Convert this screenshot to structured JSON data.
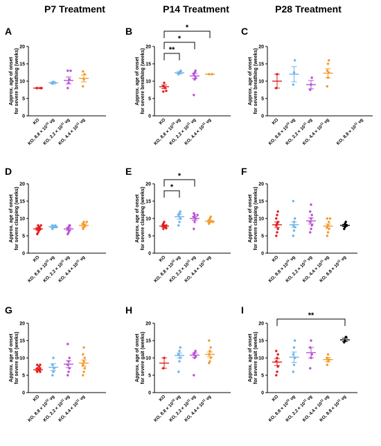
{
  "column_titles": [
    "P7 Treatment",
    "P14 Treatment",
    "P28 Treatment"
  ],
  "colors": {
    "KO": "#e41a1c",
    "KO, 8.8 × 10^10 vg": "#6cb4e8",
    "KO, 2.2 × 10^11 vg": "#b84fd6",
    "KO, 4.4 × 10^11 vg": "#f39a2b",
    "KO, 8.8 × 10^11 vg": "#000000"
  },
  "chart_data": [
    {
      "panel": "A",
      "type": "scatter",
      "ylabel": [
        "Approx. age of onset",
        "for severe breathing (weeks)"
      ],
      "ylim": [
        0,
        20
      ],
      "yticks": [
        0,
        5,
        10,
        15,
        20
      ],
      "groups": [
        {
          "label": "KO",
          "mean": 8.0,
          "sem": 0,
          "points": [
            8,
            8,
            8,
            8
          ]
        },
        {
          "label": "KO, 8.8 × 10^10 vg",
          "mean": 9.5,
          "sem": 0.3,
          "points": [
            9.3,
            9.8
          ]
        },
        {
          "label": "KO, 2.2 × 10^11 vg",
          "mean": 10.2,
          "sem": 1.0,
          "points": [
            8,
            9.5,
            10.5,
            13,
            13
          ]
        },
        {
          "label": "KO, 4.4 × 10^11 vg",
          "mean": 10.8,
          "sem": 1.0,
          "points": [
            8.5,
            10.5,
            12,
            12.8
          ]
        }
      ],
      "significance": []
    },
    {
      "panel": "B",
      "type": "scatter",
      "ylabel": [
        "Approx. age of onset",
        "for severe breathing (weeks)"
      ],
      "ylim": [
        0,
        20
      ],
      "yticks": [
        0,
        5,
        10,
        15,
        20
      ],
      "groups": [
        {
          "label": "KO",
          "mean": 8.4,
          "sem": 0.5,
          "points": [
            7,
            7.2,
            8,
            8.5,
            9.5
          ]
        },
        {
          "label": "KO, 8.8 × 10^10 vg",
          "mean": 12.4,
          "sem": 0.3,
          "points": [
            12,
            12.5,
            12.8,
            13
          ]
        },
        {
          "label": "KO, 2.2 × 10^11 vg",
          "mean": 11.5,
          "sem": 0.8,
          "points": [
            6,
            10.5,
            11,
            12,
            12.5,
            13
          ]
        },
        {
          "label": "KO, 4.4 × 10^11 vg",
          "mean": 12.0,
          "sem": 0,
          "points": [
            12,
            12
          ]
        }
      ],
      "significance": [
        {
          "from": 0,
          "to": 1,
          "label": "**",
          "level": 1
        },
        {
          "from": 0,
          "to": 2,
          "label": "*",
          "level": 2
        },
        {
          "from": 0,
          "to": 3,
          "label": "*",
          "level": 3
        }
      ]
    },
    {
      "panel": "C",
      "type": "scatter",
      "ylabel": [
        "Approx. age of onset",
        "for severe breathing (weeks)"
      ],
      "ylim": [
        0,
        20
      ],
      "yticks": [
        0,
        5,
        10,
        15,
        20
      ],
      "groups": [
        {
          "label": "KO",
          "mean": 10.0,
          "sem": 2.0,
          "points": [
            8,
            12
          ]
        },
        {
          "label": "KO, 8.8 × 10^10 vg",
          "mean": 12.0,
          "sem": 2.2,
          "points": [
            9,
            12.5,
            16
          ]
        },
        {
          "label": "KO, 2.2 × 10^11 vg",
          "mean": 9.0,
          "sem": 1.2,
          "points": [
            7.5,
            9,
            11
          ]
        },
        {
          "label": "KO, 4.4 × 10^11 vg",
          "mean": 12.3,
          "sem": 1.3,
          "points": [
            8.5,
            11,
            12.5,
            13,
            15,
            16
          ]
        },
        {
          "label": "",
          "mean": null,
          "sem": null,
          "points": []
        },
        {
          "label": "KO, 8.8 × 10^11 vg",
          "mean": null,
          "sem": null,
          "points": []
        }
      ],
      "significance": []
    },
    {
      "panel": "D",
      "type": "scatter",
      "ylabel": [
        "Approx. age of onset",
        "for severe clasping (weeks)"
      ],
      "ylim": [
        0,
        20
      ],
      "yticks": [
        0,
        5,
        10,
        15,
        20
      ],
      "groups": [
        {
          "label": "KO",
          "mean": 7.0,
          "sem": 0.4,
          "points": [
            5.5,
            6,
            6.5,
            7,
            7,
            7.5,
            7.5,
            8,
            8
          ]
        },
        {
          "label": "KO, 8.8 × 10^10 vg",
          "mean": 7.6,
          "sem": 0.3,
          "points": [
            7,
            7.5,
            7.5,
            8,
            8
          ]
        },
        {
          "label": "KO, 2.2 × 10^11 vg",
          "mean": 7.0,
          "sem": 0.4,
          "points": [
            5.5,
            6,
            6.5,
            7,
            7.5,
            8,
            8
          ]
        },
        {
          "label": "KO, 4.4 × 10^11 vg",
          "mean": 8.0,
          "sem": 0.4,
          "points": [
            7,
            7.5,
            8,
            8.5,
            9,
            9
          ]
        }
      ],
      "significance": []
    },
    {
      "panel": "E",
      "type": "scatter",
      "ylabel": [
        "Approx. age of onset",
        "for severe clasping (weeks)"
      ],
      "ylim": [
        0,
        20
      ],
      "yticks": [
        0,
        5,
        10,
        15,
        20
      ],
      "groups": [
        {
          "label": "KO",
          "mean": 7.8,
          "sem": 0.3,
          "points": [
            7,
            7.2,
            7.5,
            7.8,
            8,
            8.2,
            8.5,
            9
          ]
        },
        {
          "label": "KO, 8.8 × 10^10 vg",
          "mean": 10.5,
          "sem": 0.7,
          "points": [
            8,
            9,
            10,
            11,
            11.5,
            12
          ]
        },
        {
          "label": "KO, 2.2 × 10^11 vg",
          "mean": 10.0,
          "sem": 0.5,
          "points": [
            7,
            9,
            10,
            10.5,
            11,
            11,
            11.5
          ]
        },
        {
          "label": "KO, 4.4 × 10^11 vg",
          "mean": 9.2,
          "sem": 0.3,
          "points": [
            8.5,
            9,
            9,
            9.5,
            10,
            10.5
          ]
        }
      ],
      "significance": [
        {
          "from": 0,
          "to": 1,
          "label": "*",
          "level": 1
        },
        {
          "from": 0,
          "to": 2,
          "label": "*",
          "level": 2
        }
      ]
    },
    {
      "panel": "F",
      "type": "scatter",
      "ylabel": [
        "Approx. age of onset",
        "for severe clasping (weeks)"
      ],
      "ylim": [
        0,
        20
      ],
      "yticks": [
        0,
        5,
        10,
        15,
        20
      ],
      "groups": [
        {
          "label": "KO",
          "mean": 8.2,
          "sem": 0.8,
          "points": [
            5,
            6,
            7,
            8,
            8.5,
            9,
            10,
            11,
            12
          ]
        },
        {
          "label": "KO, 8.8 × 10^10 vg",
          "mean": 8.2,
          "sem": 0.8,
          "points": [
            5,
            6.5,
            7.5,
            8,
            9,
            10,
            15
          ]
        },
        {
          "label": "KO, 2.2 × 10^11 vg",
          "mean": 9.3,
          "sem": 0.9,
          "points": [
            6,
            7,
            8,
            9,
            10,
            11,
            12,
            14
          ]
        },
        {
          "label": "KO, 4.4 × 10^11 vg",
          "mean": 7.8,
          "sem": 0.6,
          "points": [
            5,
            6,
            7,
            7.5,
            8,
            9,
            10,
            10
          ]
        },
        {
          "label": "KO, 8.8 × 10^11 vg",
          "mean": 8.0,
          "sem": 0.3,
          "points": [
            7,
            7.5,
            8,
            8,
            8.5,
            9
          ]
        }
      ],
      "significance": []
    },
    {
      "panel": "G",
      "type": "scatter",
      "ylabel": [
        "Approx. age of onset",
        "for severe gait (weeks)"
      ],
      "ylim": [
        0,
        20
      ],
      "yticks": [
        0,
        5,
        10,
        15,
        20
      ],
      "groups": [
        {
          "label": "KO",
          "mean": 6.6,
          "sem": 0.3,
          "points": [
            6,
            6,
            6.5,
            7,
            7,
            7.5,
            8,
            8
          ]
        },
        {
          "label": "KO, 8.8 × 10^10 vg",
          "mean": 7.3,
          "sem": 1.0,
          "points": [
            5,
            6,
            7,
            8,
            10
          ]
        },
        {
          "label": "KO, 2.2 × 10^11 vg",
          "mean": 8.2,
          "sem": 1.0,
          "points": [
            5,
            6,
            7,
            8,
            9,
            10,
            14
          ]
        },
        {
          "label": "KO, 4.4 × 10^11 vg",
          "mean": 8.5,
          "sem": 0.9,
          "points": [
            5,
            6,
            7,
            8,
            9,
            10,
            11,
            13
          ]
        }
      ],
      "significance": []
    },
    {
      "panel": "H",
      "type": "scatter",
      "ylabel": [
        "Approx. age of onset",
        "for severe gait (weeks)"
      ],
      "ylim": [
        0,
        20
      ],
      "yticks": [
        0,
        5,
        10,
        15,
        20
      ],
      "groups": [
        {
          "label": "KO",
          "mean": 8.5,
          "sem": 1.5,
          "points": [
            7,
            10
          ]
        },
        {
          "label": "KO, 8.8 × 10^10 vg",
          "mean": 10.7,
          "sem": 0.7,
          "points": [
            6,
            9,
            10,
            11,
            12,
            13
          ]
        },
        {
          "label": "KO, 2.2 × 10^11 vg",
          "mean": 10.8,
          "sem": 0.6,
          "points": [
            5,
            10,
            10.5,
            11,
            11.5,
            12
          ]
        },
        {
          "label": "KO, 4.4 × 10^11 vg",
          "mean": 11.0,
          "sem": 0.7,
          "points": [
            8.5,
            9,
            10,
            11,
            12,
            13,
            15
          ]
        }
      ],
      "significance": []
    },
    {
      "panel": "I",
      "type": "scatter",
      "ylabel": [
        "Approx. age of onset",
        "for severe gait (weeks)"
      ],
      "ylim": [
        0,
        20
      ],
      "yticks": [
        0,
        5,
        10,
        15,
        20
      ],
      "groups": [
        {
          "label": "KO",
          "mean": 8.8,
          "sem": 1.0,
          "points": [
            5,
            6,
            7.5,
            9,
            10,
            11,
            12
          ]
        },
        {
          "label": "KO, 8.8 × 10^10 vg",
          "mean": 10.2,
          "sem": 1.5,
          "points": [
            6,
            8,
            10,
            11,
            13,
            15
          ]
        },
        {
          "label": "KO, 2.2 × 10^11 vg",
          "mean": 11.5,
          "sem": 1.5,
          "points": [
            7,
            10,
            11,
            13,
            15
          ]
        },
        {
          "label": "KO, 4.4 × 10^11 vg",
          "mean": 9.5,
          "sem": 0.6,
          "points": [
            8,
            9,
            9.5,
            10,
            11
          ]
        },
        {
          "label": "KO, 8.8 × 10^11 vg",
          "mean": 15.2,
          "sem": 0.5,
          "points": [
            14.5,
            15,
            16,
            16
          ]
        }
      ],
      "significance": [
        {
          "from": 0,
          "to": 4,
          "label": "**",
          "level": 1
        }
      ]
    }
  ]
}
